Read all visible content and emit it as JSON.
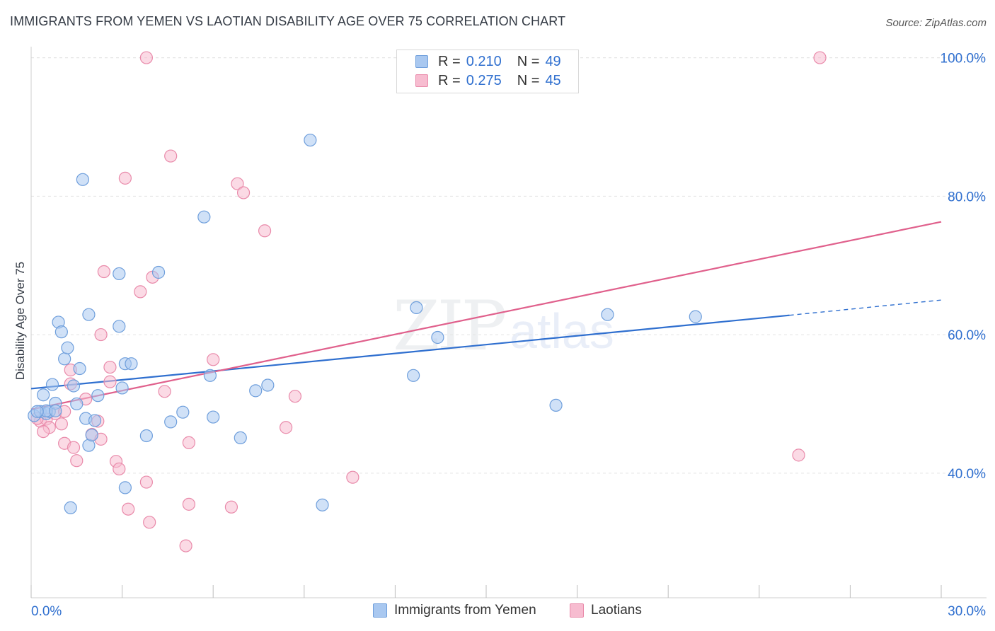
{
  "header": {
    "title": "IMMIGRANTS FROM YEMEN VS LAOTIAN DISABILITY AGE OVER 75 CORRELATION CHART",
    "source": "Source: ZipAtlas.com"
  },
  "watermark": {
    "zip": "ZIP",
    "atlas": "atlas"
  },
  "legend_top": {
    "rows": [
      {
        "r_label": "R =",
        "r_value": "0.210",
        "n_label": "N =",
        "n_value": "49"
      },
      {
        "r_label": "R =",
        "r_value": "0.275",
        "n_label": "N =",
        "n_value": "45"
      }
    ]
  },
  "legend_bottom": {
    "series1": "Immigrants from Yemen",
    "series2": "Laotians"
  },
  "colors": {
    "series1_fill": "#a9c8f0",
    "series1_stroke": "#6f9fdc",
    "series1_line": "#2f6fcf",
    "series2_fill": "#f7bcd0",
    "series2_stroke": "#e98aaa",
    "series2_line": "#e0608c",
    "tick_label": "#2f6fcf",
    "grid": "#e3e3e3"
  },
  "chart_data": {
    "type": "scatter",
    "title": "IMMIGRANTS FROM YEMEN VS LAOTIAN DISABILITY AGE OVER 75 CORRELATION CHART",
    "xlabel": "",
    "ylabel": "Disability Age Over 75",
    "xlim": [
      0,
      30
    ],
    "ylim": [
      22,
      102
    ],
    "x_tick_labels": [
      "0.0%",
      "30.0%"
    ],
    "y_ticks": [
      40,
      60,
      80,
      100
    ],
    "y_tick_labels": [
      "40.0%",
      "60.0%",
      "80.0%",
      "100.0%"
    ],
    "grid": true,
    "legend_position": "top-center",
    "series": [
      {
        "name": "Immigrants from Yemen",
        "r": 0.21,
        "n": 49,
        "trend": {
          "x0": 0,
          "y0": 52.2,
          "x1": 25.0,
          "y1": 62.8,
          "dash_to_x": 30,
          "dash_to_y": 65.0
        },
        "points": [
          [
            0.1,
            48.3
          ],
          [
            0.3,
            48.9
          ],
          [
            0.4,
            51.3
          ],
          [
            0.5,
            48.6
          ],
          [
            0.6,
            48.9
          ],
          [
            0.7,
            52.8
          ],
          [
            0.8,
            50.1
          ],
          [
            0.9,
            61.8
          ],
          [
            1.0,
            60.4
          ],
          [
            1.1,
            56.5
          ],
          [
            1.2,
            58.1
          ],
          [
            1.4,
            52.6
          ],
          [
            1.5,
            50.0
          ],
          [
            1.6,
            55.1
          ],
          [
            1.7,
            82.4
          ],
          [
            1.8,
            47.9
          ],
          [
            1.9,
            44.0
          ],
          [
            1.9,
            62.9
          ],
          [
            2.0,
            45.5
          ],
          [
            2.1,
            47.6
          ],
          [
            2.2,
            51.2
          ],
          [
            2.9,
            61.2
          ],
          [
            2.9,
            68.8
          ],
          [
            3.0,
            52.3
          ],
          [
            3.1,
            55.8
          ],
          [
            3.3,
            55.8
          ],
          [
            3.1,
            37.9
          ],
          [
            3.8,
            45.4
          ],
          [
            4.2,
            69.0
          ],
          [
            4.6,
            47.4
          ],
          [
            5.0,
            48.8
          ],
          [
            5.7,
            77.0
          ],
          [
            5.9,
            54.1
          ],
          [
            6.0,
            48.1
          ],
          [
            6.9,
            45.1
          ],
          [
            7.4,
            51.9
          ],
          [
            7.8,
            52.7
          ],
          [
            9.2,
            88.1
          ],
          [
            9.6,
            35.4
          ],
          [
            12.6,
            54.1
          ],
          [
            12.7,
            63.9
          ],
          [
            13.4,
            59.6
          ],
          [
            17.3,
            49.8
          ],
          [
            19.0,
            62.9
          ],
          [
            21.9,
            62.6
          ],
          [
            1.3,
            35.0
          ],
          [
            0.5,
            49.0
          ],
          [
            0.8,
            49.0
          ],
          [
            0.2,
            48.9
          ]
        ]
      },
      {
        "name": "Laotians",
        "r": 0.275,
        "n": 45,
        "trend": {
          "x0": 0,
          "y0": 49.2,
          "x1": 30,
          "y1": 76.3
        },
        "points": [
          [
            3.8,
            100.0
          ],
          [
            26.0,
            100.0
          ],
          [
            4.6,
            85.8
          ],
          [
            3.1,
            82.6
          ],
          [
            6.8,
            81.8
          ],
          [
            7.0,
            80.5
          ],
          [
            7.7,
            75.0
          ],
          [
            2.4,
            69.1
          ],
          [
            4.0,
            68.3
          ],
          [
            3.6,
            66.2
          ],
          [
            2.3,
            60.0
          ],
          [
            1.3,
            54.9
          ],
          [
            2.6,
            55.3
          ],
          [
            1.3,
            52.9
          ],
          [
            2.6,
            53.2
          ],
          [
            6.0,
            56.4
          ],
          [
            4.4,
            51.8
          ],
          [
            8.7,
            51.1
          ],
          [
            1.8,
            50.7
          ],
          [
            0.3,
            47.5
          ],
          [
            0.5,
            47.8
          ],
          [
            0.6,
            46.6
          ],
          [
            0.8,
            48.6
          ],
          [
            1.0,
            47.1
          ],
          [
            0.4,
            46.0
          ],
          [
            1.1,
            44.3
          ],
          [
            1.4,
            43.7
          ],
          [
            1.5,
            41.8
          ],
          [
            2.0,
            45.6
          ],
          [
            2.2,
            47.5
          ],
          [
            2.3,
            44.9
          ],
          [
            2.8,
            41.7
          ],
          [
            2.9,
            40.6
          ],
          [
            3.8,
            38.7
          ],
          [
            3.2,
            34.8
          ],
          [
            3.9,
            32.9
          ],
          [
            5.2,
            44.4
          ],
          [
            5.2,
            35.5
          ],
          [
            6.6,
            35.1
          ],
          [
            8.4,
            46.6
          ],
          [
            10.6,
            39.4
          ],
          [
            5.1,
            29.5
          ],
          [
            25.3,
            42.6
          ],
          [
            1.1,
            48.9
          ],
          [
            0.2,
            47.9
          ]
        ]
      }
    ]
  }
}
